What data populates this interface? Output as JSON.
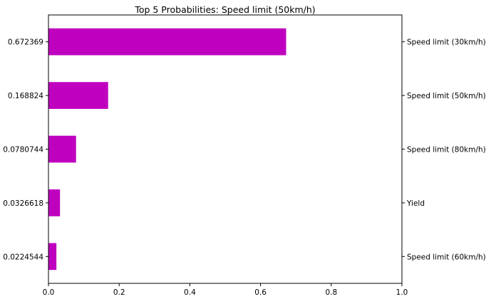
{
  "chart_data": {
    "type": "bar",
    "orientation": "horizontal",
    "title": "Top 5 Probabilities: Speed limit (50km/h)",
    "xlabel": "",
    "ylabel": "",
    "xlim": [
      0,
      1.0
    ],
    "x_ticks": [
      "0.0",
      "0.2",
      "0.4",
      "0.6",
      "0.8",
      "1.0"
    ],
    "x_tick_values": [
      0,
      0.2,
      0.4,
      0.6,
      0.8,
      1.0
    ],
    "grid": false,
    "bar_color": "#bf00bf",
    "bars": [
      {
        "left_label": "0.672369",
        "right_label": "Speed limit (30km/h)",
        "value": 0.672369
      },
      {
        "left_label": "0.168824",
        "right_label": "Speed limit (50km/h)",
        "value": 0.168824
      },
      {
        "left_label": "0.0780744",
        "right_label": "Speed limit (80km/h)",
        "value": 0.0780744
      },
      {
        "left_label": "0.0326618",
        "right_label": "Yield",
        "value": 0.0326618
      },
      {
        "left_label": "0.0224544",
        "right_label": "Speed limit (60km/h)",
        "value": 0.0224544
      }
    ]
  }
}
